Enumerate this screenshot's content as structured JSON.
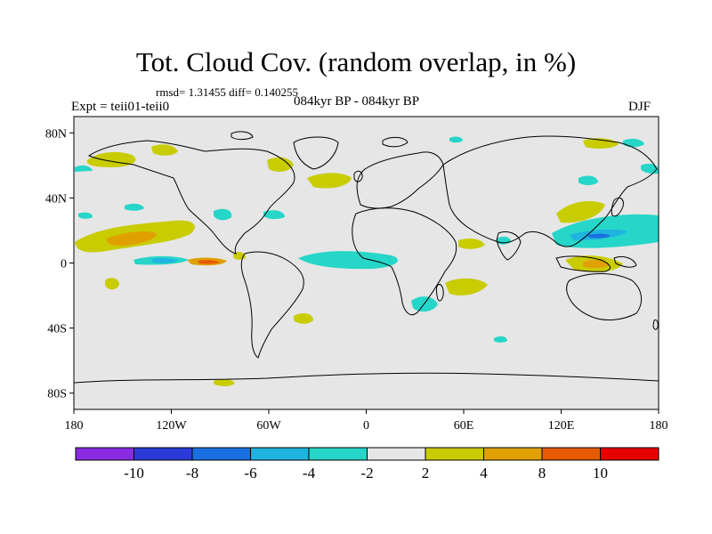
{
  "title": "Tot. Cloud Cov. (random overlap, in %)",
  "stats": "rmsd= 1.31455 diff= 0.140255",
  "experiment": "Expt = teii01-teii0",
  "period": "084kyr BP - 084kyr BP",
  "season": "DJF",
  "lat_ticks": [
    {
      "label": "80N",
      "lat": 80
    },
    {
      "label": "40N",
      "lat": 40
    },
    {
      "label": "0",
      "lat": 0
    },
    {
      "label": "40S",
      "lat": -40
    },
    {
      "label": "80S",
      "lat": -80
    }
  ],
  "lon_ticks": [
    {
      "label": "180",
      "lon": -180
    },
    {
      "label": "120W",
      "lon": -120
    },
    {
      "label": "60W",
      "lon": -60
    },
    {
      "label": "0",
      "lon": 0
    },
    {
      "label": "60E",
      "lon": 60
    },
    {
      "label": "120E",
      "lon": 120
    },
    {
      "label": "180",
      "lon": 180
    }
  ],
  "colorbar": {
    "colors": [
      "#8a2be2",
      "#2b3bd9",
      "#1a6fe0",
      "#1fb3e0",
      "#26d6c8",
      "#e6e6e6",
      "#c8cc00",
      "#e0a000",
      "#e65a00",
      "#e60000"
    ],
    "labels": [
      "-10",
      "-8",
      "-6",
      "-4",
      "-2",
      "2",
      "4",
      "8",
      "10"
    ]
  },
  "colors": {
    "ocean_land_bg": "#e6e6e6",
    "coastline": "#000000"
  }
}
